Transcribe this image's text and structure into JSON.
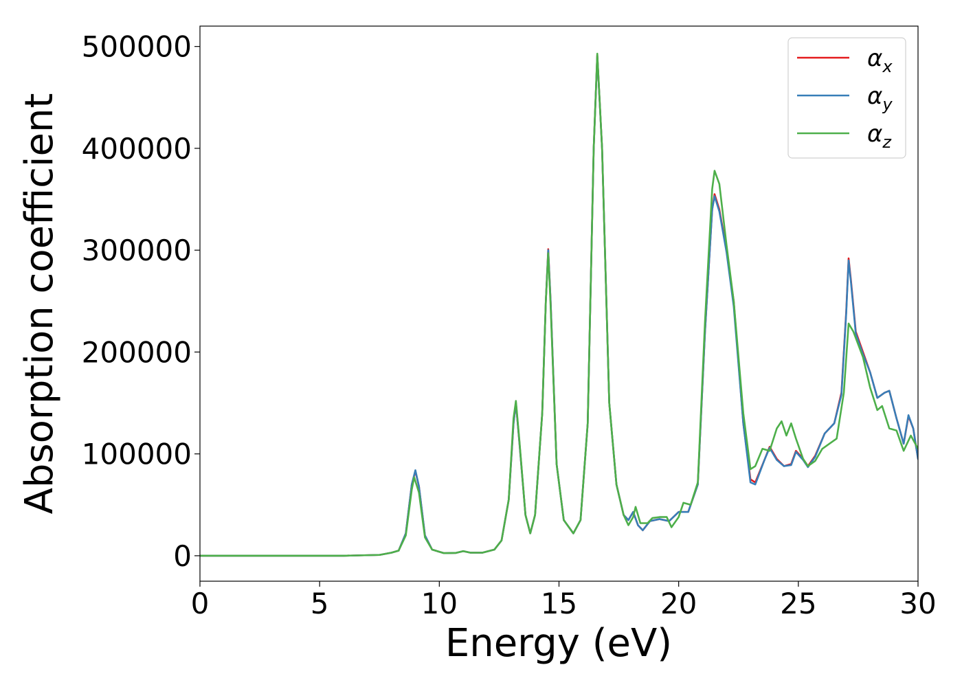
{
  "chart_data": {
    "type": "line",
    "title": "",
    "xlabel": "Energy (eV)",
    "ylabel": "Absorption coefficient",
    "xlim": [
      0,
      30
    ],
    "ylim": [
      -25000,
      520000
    ],
    "xticks": [
      0,
      5,
      10,
      15,
      20,
      25,
      30
    ],
    "yticks": [
      0,
      100000,
      200000,
      300000,
      400000,
      500000
    ],
    "grid": false,
    "legend_position": "top-right",
    "series": [
      {
        "name": "α_x",
        "label_base": "α",
        "label_sub": "x",
        "color": "#e41a1c",
        "points": [
          [
            0,
            0
          ],
          [
            6,
            0
          ],
          [
            7.5,
            800
          ],
          [
            8,
            3000
          ],
          [
            8.3,
            5000
          ],
          [
            8.6,
            22000
          ],
          [
            8.85,
            70000
          ],
          [
            9.0,
            83000
          ],
          [
            9.15,
            68000
          ],
          [
            9.4,
            20000
          ],
          [
            9.7,
            6000
          ],
          [
            10.2,
            2500
          ],
          [
            10.7,
            2800
          ],
          [
            11.0,
            4500
          ],
          [
            11.3,
            3000
          ],
          [
            11.8,
            3000
          ],
          [
            12.3,
            6000
          ],
          [
            12.6,
            15000
          ],
          [
            12.9,
            55000
          ],
          [
            13.1,
            130000
          ],
          [
            13.2,
            150000
          ],
          [
            13.35,
            110000
          ],
          [
            13.6,
            40000
          ],
          [
            13.8,
            22000
          ],
          [
            14.0,
            40000
          ],
          [
            14.3,
            140000
          ],
          [
            14.45,
            250000
          ],
          [
            14.55,
            301000
          ],
          [
            14.65,
            250000
          ],
          [
            14.9,
            90000
          ],
          [
            15.2,
            35000
          ],
          [
            15.6,
            22000
          ],
          [
            15.9,
            35000
          ],
          [
            16.2,
            130000
          ],
          [
            16.45,
            400000
          ],
          [
            16.6,
            492000
          ],
          [
            16.8,
            400000
          ],
          [
            17.1,
            150000
          ],
          [
            17.4,
            70000
          ],
          [
            17.7,
            40000
          ],
          [
            17.9,
            35000
          ],
          [
            18.1,
            43000
          ],
          [
            18.3,
            30000
          ],
          [
            18.5,
            25000
          ],
          [
            18.8,
            34000
          ],
          [
            19.2,
            36000
          ],
          [
            19.6,
            34000
          ],
          [
            20.0,
            43000
          ],
          [
            20.4,
            43000
          ],
          [
            20.8,
            70000
          ],
          [
            21.1,
            220000
          ],
          [
            21.4,
            340000
          ],
          [
            21.5,
            355000
          ],
          [
            21.7,
            340000
          ],
          [
            22.0,
            300000
          ],
          [
            22.3,
            250000
          ],
          [
            22.7,
            130000
          ],
          [
            23.0,
            75000
          ],
          [
            23.2,
            72000
          ],
          [
            23.6,
            95000
          ],
          [
            23.8,
            107000
          ],
          [
            24.1,
            95000
          ],
          [
            24.4,
            88000
          ],
          [
            24.7,
            90000
          ],
          [
            24.9,
            103000
          ],
          [
            25.2,
            95000
          ],
          [
            25.4,
            88000
          ],
          [
            25.7,
            98000
          ],
          [
            26.1,
            120000
          ],
          [
            26.5,
            130000
          ],
          [
            26.8,
            160000
          ],
          [
            27.0,
            240000
          ],
          [
            27.1,
            292000
          ],
          [
            27.2,
            270000
          ],
          [
            27.4,
            220000
          ],
          [
            27.7,
            200000
          ],
          [
            28.0,
            180000
          ],
          [
            28.3,
            155000
          ],
          [
            28.6,
            160000
          ],
          [
            28.8,
            162000
          ],
          [
            29.1,
            135000
          ],
          [
            29.4,
            110000
          ],
          [
            29.6,
            137000
          ],
          [
            29.8,
            125000
          ],
          [
            30.0,
            95000
          ]
        ]
      },
      {
        "name": "α_y",
        "label_base": "α",
        "label_sub": "y",
        "color": "#377eb8",
        "points": [
          [
            0,
            0
          ],
          [
            6,
            0
          ],
          [
            7.5,
            800
          ],
          [
            8,
            3000
          ],
          [
            8.3,
            5000
          ],
          [
            8.6,
            22000
          ],
          [
            8.85,
            70000
          ],
          [
            9.0,
            84000
          ],
          [
            9.15,
            68000
          ],
          [
            9.4,
            20000
          ],
          [
            9.7,
            6000
          ],
          [
            10.2,
            2500
          ],
          [
            10.7,
            2800
          ],
          [
            11.0,
            4500
          ],
          [
            11.3,
            3000
          ],
          [
            11.8,
            3000
          ],
          [
            12.3,
            6000
          ],
          [
            12.6,
            15000
          ],
          [
            12.9,
            55000
          ],
          [
            13.1,
            130000
          ],
          [
            13.2,
            150000
          ],
          [
            13.35,
            110000
          ],
          [
            13.6,
            40000
          ],
          [
            13.8,
            22000
          ],
          [
            14.0,
            40000
          ],
          [
            14.3,
            140000
          ],
          [
            14.45,
            250000
          ],
          [
            14.55,
            300000
          ],
          [
            14.65,
            250000
          ],
          [
            14.9,
            90000
          ],
          [
            15.2,
            35000
          ],
          [
            15.6,
            22000
          ],
          [
            15.9,
            35000
          ],
          [
            16.2,
            130000
          ],
          [
            16.45,
            400000
          ],
          [
            16.6,
            491000
          ],
          [
            16.8,
            400000
          ],
          [
            17.1,
            150000
          ],
          [
            17.4,
            70000
          ],
          [
            17.7,
            40000
          ],
          [
            17.9,
            35000
          ],
          [
            18.1,
            43000
          ],
          [
            18.3,
            30000
          ],
          [
            18.5,
            25000
          ],
          [
            18.8,
            34000
          ],
          [
            19.2,
            36000
          ],
          [
            19.6,
            34000
          ],
          [
            20.0,
            43000
          ],
          [
            20.4,
            43000
          ],
          [
            20.8,
            70000
          ],
          [
            21.1,
            220000
          ],
          [
            21.4,
            340000
          ],
          [
            21.5,
            353000
          ],
          [
            21.7,
            338000
          ],
          [
            22.0,
            298000
          ],
          [
            22.3,
            245000
          ],
          [
            22.7,
            130000
          ],
          [
            23.0,
            72000
          ],
          [
            23.2,
            70000
          ],
          [
            23.6,
            95000
          ],
          [
            23.8,
            106000
          ],
          [
            24.1,
            94000
          ],
          [
            24.4,
            88000
          ],
          [
            24.7,
            89000
          ],
          [
            24.9,
            102000
          ],
          [
            25.2,
            94000
          ],
          [
            25.4,
            87000
          ],
          [
            25.7,
            97000
          ],
          [
            26.1,
            120000
          ],
          [
            26.5,
            130000
          ],
          [
            26.8,
            158000
          ],
          [
            27.0,
            238000
          ],
          [
            27.1,
            290000
          ],
          [
            27.2,
            268000
          ],
          [
            27.4,
            218000
          ],
          [
            27.7,
            198000
          ],
          [
            28.0,
            180000
          ],
          [
            28.3,
            155000
          ],
          [
            28.6,
            160000
          ],
          [
            28.8,
            162000
          ],
          [
            29.1,
            135000
          ],
          [
            29.4,
            110000
          ],
          [
            29.6,
            138000
          ],
          [
            29.8,
            125000
          ],
          [
            30.0,
            95000
          ]
        ]
      },
      {
        "name": "α_z",
        "label_base": "α",
        "label_sub": "z",
        "color": "#4daf4a",
        "points": [
          [
            0,
            0
          ],
          [
            6,
            0
          ],
          [
            7.5,
            800
          ],
          [
            8,
            3000
          ],
          [
            8.3,
            5000
          ],
          [
            8.6,
            20000
          ],
          [
            8.85,
            65000
          ],
          [
            8.95,
            77000
          ],
          [
            9.15,
            62000
          ],
          [
            9.4,
            18000
          ],
          [
            9.7,
            6000
          ],
          [
            10.2,
            2500
          ],
          [
            10.7,
            2800
          ],
          [
            11.0,
            4500
          ],
          [
            11.3,
            3000
          ],
          [
            11.8,
            3000
          ],
          [
            12.3,
            6000
          ],
          [
            12.6,
            15000
          ],
          [
            12.9,
            55000
          ],
          [
            13.1,
            135000
          ],
          [
            13.2,
            152000
          ],
          [
            13.35,
            112000
          ],
          [
            13.6,
            40000
          ],
          [
            13.8,
            22000
          ],
          [
            14.0,
            40000
          ],
          [
            14.3,
            140000
          ],
          [
            14.45,
            250000
          ],
          [
            14.55,
            297000
          ],
          [
            14.65,
            245000
          ],
          [
            14.9,
            90000
          ],
          [
            15.2,
            35000
          ],
          [
            15.6,
            22000
          ],
          [
            15.9,
            35000
          ],
          [
            16.2,
            130000
          ],
          [
            16.45,
            400000
          ],
          [
            16.6,
            493000
          ],
          [
            16.8,
            400000
          ],
          [
            17.1,
            150000
          ],
          [
            17.4,
            70000
          ],
          [
            17.7,
            40000
          ],
          [
            17.9,
            30000
          ],
          [
            18.1,
            38000
          ],
          [
            18.2,
            48000
          ],
          [
            18.4,
            32000
          ],
          [
            18.7,
            32000
          ],
          [
            18.9,
            37000
          ],
          [
            19.2,
            38000
          ],
          [
            19.5,
            38000
          ],
          [
            19.7,
            28000
          ],
          [
            20.0,
            38000
          ],
          [
            20.2,
            52000
          ],
          [
            20.5,
            50000
          ],
          [
            20.8,
            72000
          ],
          [
            21.1,
            230000
          ],
          [
            21.4,
            360000
          ],
          [
            21.5,
            378000
          ],
          [
            21.7,
            365000
          ],
          [
            22.0,
            305000
          ],
          [
            22.3,
            250000
          ],
          [
            22.7,
            140000
          ],
          [
            23.0,
            85000
          ],
          [
            23.2,
            88000
          ],
          [
            23.5,
            105000
          ],
          [
            23.8,
            103000
          ],
          [
            24.1,
            125000
          ],
          [
            24.3,
            132000
          ],
          [
            24.5,
            118000
          ],
          [
            24.7,
            130000
          ],
          [
            24.9,
            115000
          ],
          [
            25.2,
            95000
          ],
          [
            25.4,
            88000
          ],
          [
            25.7,
            93000
          ],
          [
            26.0,
            105000
          ],
          [
            26.3,
            110000
          ],
          [
            26.6,
            115000
          ],
          [
            26.9,
            160000
          ],
          [
            27.1,
            228000
          ],
          [
            27.3,
            220000
          ],
          [
            27.7,
            195000
          ],
          [
            28.0,
            165000
          ],
          [
            28.3,
            143000
          ],
          [
            28.5,
            147000
          ],
          [
            28.8,
            125000
          ],
          [
            29.1,
            123000
          ],
          [
            29.4,
            103000
          ],
          [
            29.7,
            118000
          ],
          [
            30.0,
            105000
          ]
        ]
      }
    ]
  }
}
